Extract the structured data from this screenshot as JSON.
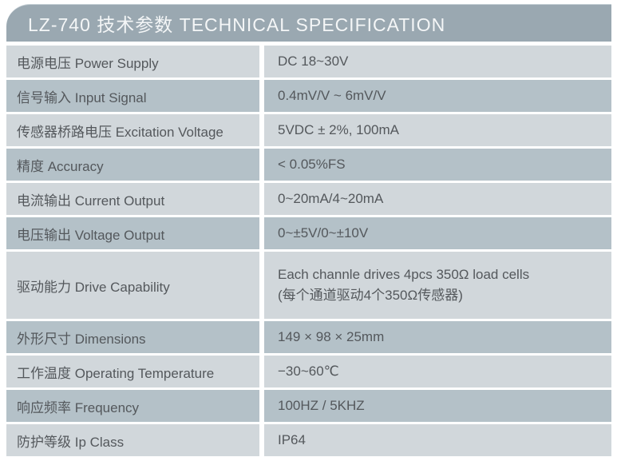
{
  "header": {
    "title": "LZ-740 技术参数 TECHNICAL SPECIFICATION"
  },
  "colors": {
    "header_bg": "#9aa8b1",
    "row_light": "#d1d7db",
    "row_dark": "#b4c1c8",
    "text": "#54585c",
    "header_text": "#f4f6f7",
    "page_bg": "#ffffff"
  },
  "table": {
    "rows": [
      {
        "label": "电源电压 Power Supply",
        "value": "DC 18~30V"
      },
      {
        "label": "信号输入 Input Signal",
        "value": "0.4mV/V ~ 6mV/V"
      },
      {
        "label": "传感器桥路电压 Excitation Voltage",
        "value": "5VDC ± 2%, 100mA"
      },
      {
        "label": "精度 Accuracy",
        "value": "< 0.05%FS"
      },
      {
        "label": "电流输出 Current Output",
        "value": "0~20mA/4~20mA"
      },
      {
        "label": "电压输出 Voltage Output",
        "value": "0~±5V/0~±10V"
      },
      {
        "label": "驱动能力 Drive Capability",
        "value": "Each channle drives 4pcs 350Ω load cells",
        "value_line2": "(每个通道驱动4个350Ω传感器)"
      },
      {
        "label": "外形尺寸 Dimensions",
        "value": "149 × 98 × 25mm"
      },
      {
        "label": "工作温度 Operating Temperature",
        "value": "−30~60℃"
      },
      {
        "label": "响应频率 Frequency",
        "value": "100HZ / 5KHZ"
      },
      {
        "label": "防护等级 Ip Class",
        "value": "IP64"
      }
    ]
  }
}
